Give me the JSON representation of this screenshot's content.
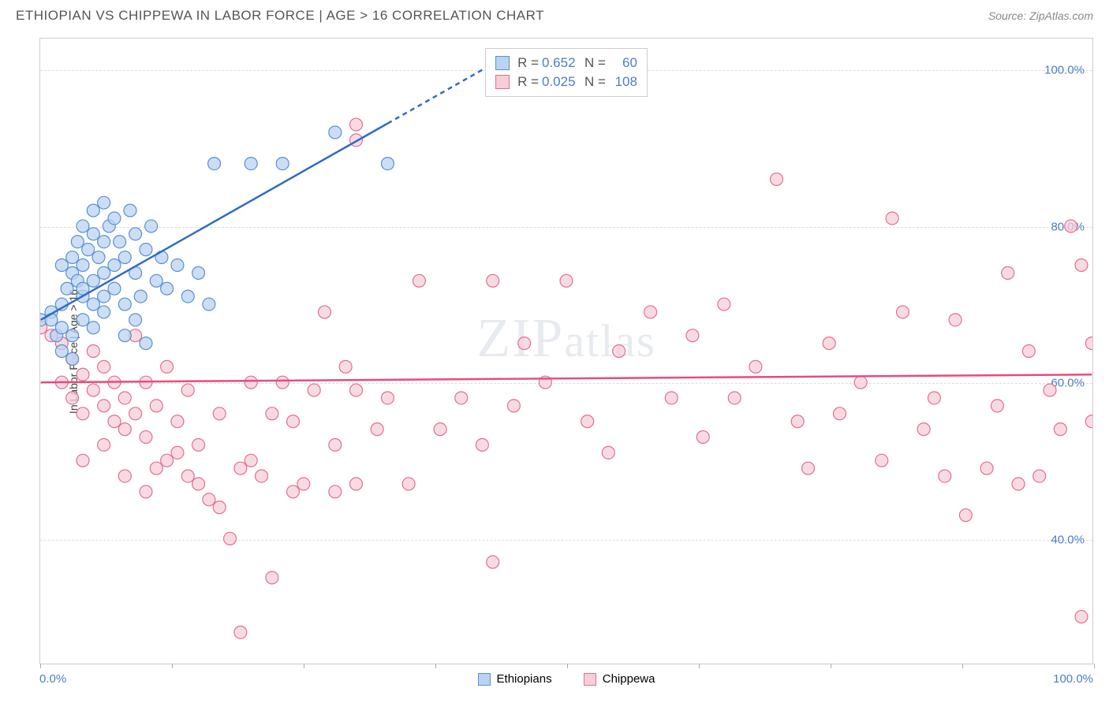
{
  "header": {
    "title": "ETHIOPIAN VS CHIPPEWA IN LABOR FORCE | AGE > 16 CORRELATION CHART",
    "source_label": "Source:",
    "source_name": "ZipAtlas.com"
  },
  "ylabel": "In Labor Force | Age > 16",
  "xlim": [
    0,
    100
  ],
  "ylim": [
    24,
    104
  ],
  "x_ticks": [
    0,
    12.5,
    25,
    37.5,
    50,
    62.5,
    75,
    87.5,
    100
  ],
  "x_tick_labels": {
    "0": "0.0%",
    "100": "100.0%"
  },
  "y_grid": [
    40,
    60,
    80,
    100
  ],
  "y_tick_labels": {
    "40": "40.0%",
    "60": "60.0%",
    "80": "80.0%",
    "100": "100.0%"
  },
  "watermark": "ZIPatlas",
  "series": {
    "ethiopians": {
      "label": "Ethiopians",
      "marker_fill": "#b9d3f0",
      "marker_stroke": "#5b8fd4",
      "marker_radius": 8,
      "marker_opacity": 0.75,
      "line_color": "#2e6bc7",
      "line_width": 2.5,
      "corr_R": "0.652",
      "corr_N": "60",
      "trend": {
        "x1": 0,
        "y1": 68,
        "x2": 42,
        "y2": 100,
        "dash_after_x": 33
      },
      "points": [
        [
          0,
          68
        ],
        [
          1,
          69
        ],
        [
          1.5,
          66
        ],
        [
          2,
          70
        ],
        [
          2,
          75
        ],
        [
          2.5,
          72
        ],
        [
          3,
          74
        ],
        [
          3,
          76
        ],
        [
          3.5,
          73
        ],
        [
          3.5,
          78
        ],
        [
          4,
          71
        ],
        [
          4,
          75
        ],
        [
          4,
          80
        ],
        [
          4.5,
          77
        ],
        [
          5,
          73
        ],
        [
          5,
          79
        ],
        [
          5,
          82
        ],
        [
          5.5,
          76
        ],
        [
          6,
          74
        ],
        [
          6,
          78
        ],
        [
          6,
          83
        ],
        [
          6.5,
          80
        ],
        [
          7,
          75
        ],
        [
          7,
          81
        ],
        [
          7,
          72
        ],
        [
          7.5,
          78
        ],
        [
          8,
          76
        ],
        [
          8,
          66
        ],
        [
          8.5,
          82
        ],
        [
          9,
          74
        ],
        [
          9,
          79
        ],
        [
          9.5,
          71
        ],
        [
          10,
          77
        ],
        [
          10,
          65
        ],
        [
          10.5,
          80
        ],
        [
          11,
          73
        ],
        [
          11.5,
          76
        ],
        [
          12,
          72
        ],
        [
          13,
          75
        ],
        [
          14,
          71
        ],
        [
          15,
          74
        ],
        [
          16,
          70
        ],
        [
          16.5,
          88
        ],
        [
          20,
          88
        ],
        [
          23,
          88
        ],
        [
          28,
          92
        ],
        [
          33,
          88
        ],
        [
          1,
          68
        ],
        [
          2,
          67
        ],
        [
          3,
          66
        ],
        [
          4,
          68
        ],
        [
          5,
          70
        ],
        [
          6,
          71
        ],
        [
          2,
          64
        ],
        [
          3,
          63
        ],
        [
          4,
          72
        ],
        [
          5,
          67
        ],
        [
          6,
          69
        ],
        [
          8,
          70
        ],
        [
          9,
          68
        ]
      ]
    },
    "chippewa": {
      "label": "Chippewa",
      "marker_fill": "#f7cdd9",
      "marker_stroke": "#e0708e",
      "marker_radius": 8,
      "marker_opacity": 0.75,
      "line_color": "#e84b7e",
      "line_width": 2.5,
      "corr_R": "0.025",
      "corr_N": "108",
      "trend": {
        "x1": 0,
        "y1": 60,
        "x2": 100,
        "y2": 61
      },
      "points": [
        [
          0,
          67
        ],
        [
          1,
          66
        ],
        [
          2,
          65
        ],
        [
          2,
          60
        ],
        [
          3,
          63
        ],
        [
          3,
          58
        ],
        [
          4,
          61
        ],
        [
          4,
          56
        ],
        [
          5,
          64
        ],
        [
          5,
          59
        ],
        [
          6,
          57
        ],
        [
          6,
          62
        ],
        [
          7,
          55
        ],
        [
          7,
          60
        ],
        [
          8,
          58
        ],
        [
          8,
          54
        ],
        [
          9,
          56
        ],
        [
          9,
          66
        ],
        [
          10,
          53
        ],
        [
          10,
          60
        ],
        [
          11,
          57
        ],
        [
          12,
          50
        ],
        [
          12,
          62
        ],
        [
          13,
          55
        ],
        [
          14,
          48
        ],
        [
          14,
          59
        ],
        [
          15,
          52
        ],
        [
          16,
          45
        ],
        [
          17,
          56
        ],
        [
          18,
          40
        ],
        [
          19,
          28
        ],
        [
          20,
          50
        ],
        [
          21,
          48
        ],
        [
          22,
          35
        ],
        [
          23,
          60
        ],
        [
          24,
          55
        ],
        [
          25,
          47
        ],
        [
          27,
          69
        ],
        [
          28,
          46
        ],
        [
          29,
          62
        ],
        [
          30,
          47
        ],
        [
          30,
          93
        ],
        [
          30,
          91
        ],
        [
          32,
          54
        ],
        [
          33,
          58
        ],
        [
          35,
          47
        ],
        [
          36,
          73
        ],
        [
          38,
          54
        ],
        [
          40,
          58
        ],
        [
          42,
          52
        ],
        [
          43,
          73
        ],
        [
          43,
          37
        ],
        [
          45,
          57
        ],
        [
          46,
          65
        ],
        [
          48,
          60
        ],
        [
          50,
          73
        ],
        [
          52,
          55
        ],
        [
          54,
          51
        ],
        [
          55,
          64
        ],
        [
          58,
          69
        ],
        [
          60,
          58
        ],
        [
          62,
          66
        ],
        [
          63,
          53
        ],
        [
          65,
          70
        ],
        [
          66,
          58
        ],
        [
          68,
          62
        ],
        [
          70,
          86
        ],
        [
          72,
          55
        ],
        [
          73,
          49
        ],
        [
          75,
          65
        ],
        [
          76,
          56
        ],
        [
          78,
          60
        ],
        [
          80,
          50
        ],
        [
          81,
          81
        ],
        [
          82,
          69
        ],
        [
          84,
          54
        ],
        [
          85,
          58
        ],
        [
          86,
          48
        ],
        [
          87,
          68
        ],
        [
          88,
          43
        ],
        [
          90,
          49
        ],
        [
          91,
          57
        ],
        [
          92,
          74
        ],
        [
          93,
          47
        ],
        [
          94,
          64
        ],
        [
          95,
          48
        ],
        [
          96,
          59
        ],
        [
          97,
          54
        ],
        [
          98,
          80
        ],
        [
          99,
          75
        ],
        [
          99,
          30
        ],
        [
          100,
          55
        ],
        [
          100,
          65
        ],
        [
          4,
          50
        ],
        [
          6,
          52
        ],
        [
          8,
          48
        ],
        [
          10,
          46
        ],
        [
          11,
          49
        ],
        [
          13,
          51
        ],
        [
          15,
          47
        ],
        [
          17,
          44
        ],
        [
          19,
          49
        ],
        [
          20,
          60
        ],
        [
          22,
          56
        ],
        [
          24,
          46
        ],
        [
          26,
          59
        ],
        [
          28,
          52
        ],
        [
          30,
          59
        ]
      ]
    }
  },
  "corr_box": {
    "R_label": "R =",
    "N_label": "N ="
  },
  "chart_bg": "#ffffff",
  "grid_color": "#dddddd",
  "axis_color": "#cccccc",
  "tick_label_color": "#4a7ec9"
}
